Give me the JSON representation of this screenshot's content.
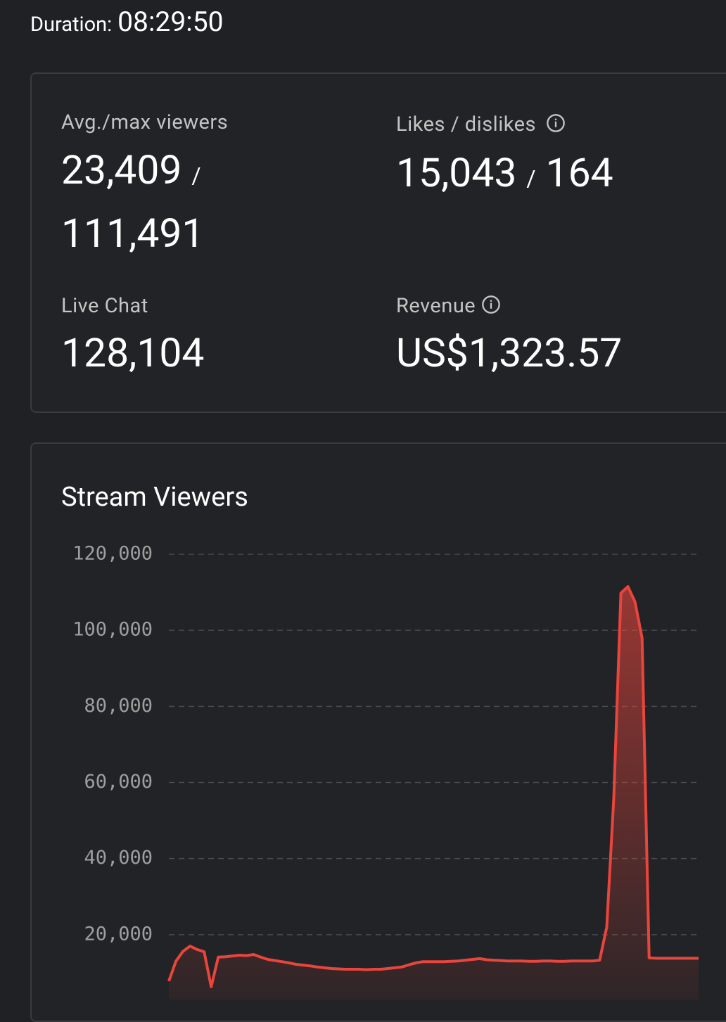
{
  "duration": {
    "label": "Duration:",
    "value": "08:29:50"
  },
  "stats": [
    {
      "label": "Avg./max viewers",
      "value": "23,409",
      "separator": "/",
      "value2": "111,491"
    },
    {
      "label": "Likes / dislikes",
      "value": "15,043",
      "separator": "/",
      "value2": "164"
    },
    {
      "label": "Live Chat",
      "value": "128,104"
    },
    {
      "label": "Revenue",
      "value": "US$1,323.57"
    }
  ],
  "chart_data": {
    "type": "line",
    "title": "Stream Viewers",
    "color": "#e8453c",
    "grid": true,
    "values": [
      7760,
      13000,
      15600,
      17000,
      16100,
      15500,
      6300,
      14100,
      14200,
      14400,
      14600,
      14500,
      14800,
      14100,
      13500,
      13200,
      12900,
      12600,
      12200,
      12000,
      11800,
      11500,
      11300,
      11100,
      11000,
      10900,
      10900,
      10900,
      10800,
      10900,
      10900,
      11100,
      11300,
      11500,
      12100,
      12600,
      12900,
      12900,
      12900,
      12900,
      13000,
      13100,
      13300,
      13500,
      13700,
      13400,
      13300,
      13200,
      13100,
      13100,
      13100,
      13000,
      13000,
      13100,
      13100,
      13000,
      13000,
      13100,
      13100,
      13100,
      13100,
      13300,
      22000,
      56000,
      109800,
      111491,
      107500,
      98000,
      13900,
      13800,
      13800,
      13800,
      13800,
      13800,
      13800,
      13800
    ],
    "ylim": [
      0,
      120000
    ],
    "yticks": [
      {
        "value": 20000,
        "label": "20,000"
      },
      {
        "value": 40000,
        "label": "40,000"
      },
      {
        "value": 60000,
        "label": "60,000"
      },
      {
        "value": 80000,
        "label": "80,000"
      },
      {
        "value": 100000,
        "label": "100,000"
      },
      {
        "value": 120000,
        "label": "120,000"
      }
    ]
  }
}
